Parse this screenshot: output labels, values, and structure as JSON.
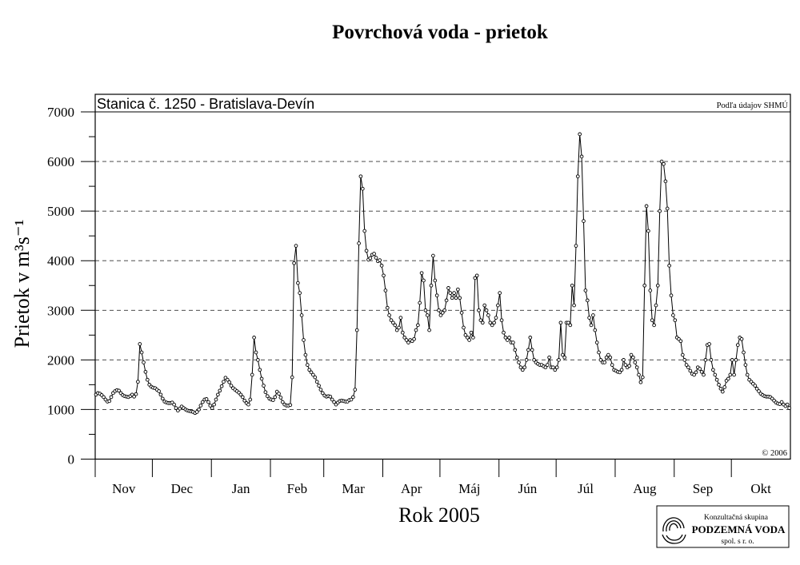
{
  "chart_data": {
    "type": "line",
    "title": "Povrchová voda - prietok",
    "xlabel": "Rok 2005",
    "ylabel": "Prietok v m³s⁻¹",
    "station_label": "Stanica č. 1250 - Bratislava-Devín",
    "source_note": "Podľa údajov SHMÚ",
    "copyright": "© 2006",
    "ylim": [
      0,
      7000
    ],
    "yticks": [
      0,
      1000,
      2000,
      3000,
      4000,
      5000,
      6000,
      7000
    ],
    "grid": true,
    "line_color": "#000000",
    "months": [
      {
        "label": "Nov",
        "values": [
          1300,
          1330,
          1320,
          1290,
          1250,
          1200,
          1160,
          1170,
          1250,
          1330,
          1370,
          1390,
          1380,
          1330,
          1290,
          1270,
          1260,
          1250,
          1270,
          1300,
          1260,
          1310,
          1560,
          2320,
          2150,
          1950,
          1760,
          1600,
          1500,
          1460
        ]
      },
      {
        "label": "Dec",
        "values": [
          1440,
          1430,
          1400,
          1370,
          1300,
          1220,
          1160,
          1140,
          1130,
          1130,
          1140,
          1100,
          1030,
          980,
          1020,
          1060,
          1030,
          1000,
          980,
          970,
          960,
          950,
          930,
          950,
          1000,
          1080,
          1150,
          1200,
          1210,
          1150,
          1080
        ]
      },
      {
        "label": "Jan",
        "values": [
          1030,
          1100,
          1200,
          1300,
          1380,
          1470,
          1560,
          1640,
          1600,
          1550,
          1480,
          1430,
          1400,
          1370,
          1340,
          1300,
          1250,
          1180,
          1130,
          1100,
          1200,
          1700,
          2450,
          2150,
          2000,
          1800,
          1620,
          1480,
          1350,
          1270,
          1220
        ]
      },
      {
        "label": "Feb",
        "values": [
          1200,
          1190,
          1250,
          1360,
          1320,
          1240,
          1150,
          1100,
          1080,
          1080,
          1090,
          1650,
          3950,
          4300,
          3550,
          3350,
          2900,
          2400,
          2100,
          1900,
          1800,
          1750,
          1700,
          1650,
          1560,
          1480,
          1400,
          1330
        ]
      },
      {
        "label": "Mar",
        "values": [
          1280,
          1260,
          1270,
          1260,
          1200,
          1150,
          1100,
          1140,
          1170,
          1180,
          1170,
          1160,
          1160,
          1190,
          1200,
          1250,
          1400,
          2600,
          4350,
          5700,
          5450,
          4600,
          4200,
          4020,
          4050,
          4120,
          4140,
          4060,
          3990,
          4010,
          3900
        ]
      },
      {
        "label": "Apr",
        "values": [
          3700,
          3400,
          3050,
          2900,
          2800,
          2750,
          2700,
          2600,
          2650,
          2850,
          2550,
          2450,
          2400,
          2350,
          2400,
          2380,
          2420,
          2600,
          2700,
          3150,
          3750,
          3600,
          3000,
          2900,
          2600,
          3500,
          4100,
          3600,
          3300,
          3000
        ]
      },
      {
        "label": "Máj",
        "values": [
          2900,
          2950,
          3000,
          3200,
          3450,
          3350,
          3250,
          3350,
          3250,
          3420,
          3250,
          2950,
          2650,
          2500,
          2450,
          2400,
          2550,
          2450,
          3650,
          3700,
          3000,
          2800,
          2750,
          3100,
          3000,
          2900,
          2750,
          2700,
          2750,
          2850,
          3100
        ]
      },
      {
        "label": "Jún",
        "values": [
          3350,
          2800,
          2550,
          2450,
          2400,
          2450,
          2350,
          2350,
          2200,
          2050,
          1950,
          1850,
          1800,
          1850,
          2000,
          2200,
          2450,
          2200,
          2000,
          1950,
          1920,
          1900,
          1900,
          1870,
          1850,
          1900,
          2050,
          1850,
          1850,
          1800
        ]
      },
      {
        "label": "Júl",
        "values": [
          1850,
          2000,
          2750,
          2100,
          2050,
          2750,
          2750,
          2700,
          3500,
          3100,
          4300,
          5700,
          6550,
          6100,
          4800,
          3400,
          3200,
          2850,
          2700,
          2900,
          2600,
          2350,
          2150,
          2000,
          1950,
          1950,
          2050,
          2100,
          2050,
          1900,
          1800
        ]
      },
      {
        "label": "Aug",
        "values": [
          1780,
          1760,
          1750,
          1800,
          2000,
          1900,
          1850,
          1880,
          2100,
          2050,
          1950,
          1850,
          1700,
          1550,
          1650,
          3500,
          5100,
          4600,
          3400,
          2800,
          2700,
          3100,
          3500,
          5000,
          6000,
          5950,
          5600,
          5050,
          3900,
          3300,
          2900
        ]
      },
      {
        "label": "Sep",
        "values": [
          2800,
          2450,
          2420,
          2380,
          2100,
          2000,
          1900,
          1850,
          1780,
          1720,
          1700,
          1750,
          1850,
          1820,
          1760,
          1700,
          2000,
          2300,
          2320,
          2000,
          1800,
          1700,
          1600,
          1500,
          1420,
          1360,
          1450,
          1580,
          1620,
          1700
        ]
      },
      {
        "label": "Okt",
        "values": [
          2000,
          1700,
          2000,
          2300,
          2450,
          2420,
          2150,
          1900,
          1700,
          1600,
          1560,
          1520,
          1480,
          1420,
          1370,
          1320,
          1290,
          1270,
          1260,
          1260,
          1250,
          1220,
          1180,
          1140,
          1120,
          1110,
          1150,
          1100,
          1070,
          1100,
          1030
        ]
      }
    ]
  },
  "logo": {
    "line1": "Konzultačná skupina",
    "line2": "PODZEMNÁ VODA",
    "line3": "spol. s r. o."
  }
}
